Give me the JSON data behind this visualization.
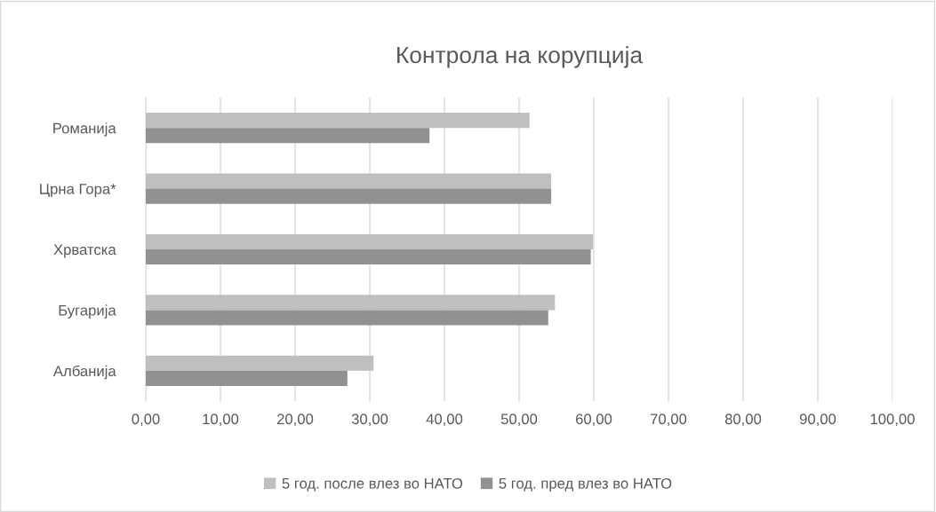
{
  "chart_data": {
    "type": "bar",
    "orientation": "horizontal",
    "title": "Контрола на корупција",
    "categories": [
      "Романија",
      "Црна Гора*",
      "Хрватска",
      "Бугарија",
      "Албанија"
    ],
    "series": [
      {
        "name": "5 год. после влез во НАТО",
        "color": "#bfbfbf",
        "values": [
          51.4,
          54.3,
          59.9,
          54.8,
          30.5
        ]
      },
      {
        "name": "5 год. пред влез во НАТО",
        "color": "#919191",
        "values": [
          38.0,
          54.3,
          59.6,
          53.9,
          27.0
        ]
      }
    ],
    "xlim": [
      0,
      100
    ],
    "xticks": [
      {
        "value": 0,
        "label": "0,00"
      },
      {
        "value": 10,
        "label": "10,00"
      },
      {
        "value": 20,
        "label": "20,00"
      },
      {
        "value": 30,
        "label": "30,00"
      },
      {
        "value": 40,
        "label": "40,00"
      },
      {
        "value": 50,
        "label": "50,00"
      },
      {
        "value": 60,
        "label": "60,00"
      },
      {
        "value": 70,
        "label": "70,00"
      },
      {
        "value": 80,
        "label": "80,00"
      },
      {
        "value": 90,
        "label": "90,00"
      },
      {
        "value": 100,
        "label": "100,00"
      }
    ],
    "grid": "x",
    "legend": "bottom"
  }
}
